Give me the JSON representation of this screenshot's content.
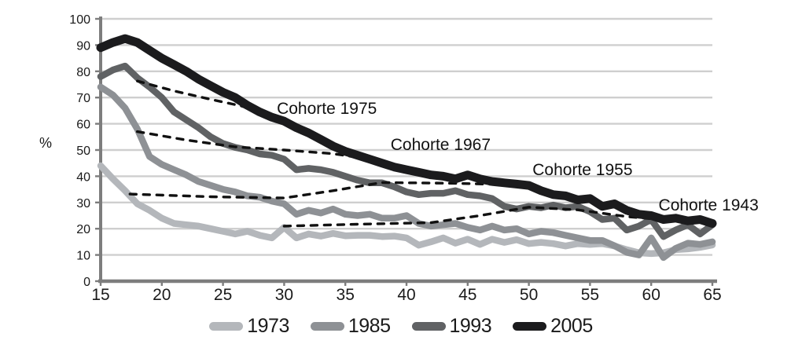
{
  "chart_data": {
    "type": "line",
    "title": "",
    "xlabel": "",
    "ylabel": "%",
    "xlim": [
      15,
      65
    ],
    "ylim": [
      0,
      100
    ],
    "xticks": [
      15,
      20,
      25,
      30,
      35,
      40,
      45,
      50,
      55,
      60,
      65
    ],
    "yticks": [
      0,
      10,
      20,
      30,
      40,
      50,
      60,
      70,
      80,
      90,
      100
    ],
    "grid": "horizontal",
    "legend_position": "bottom",
    "x": [
      15,
      16,
      17,
      18,
      19,
      20,
      21,
      22,
      23,
      24,
      25,
      26,
      27,
      28,
      29,
      30,
      31,
      32,
      33,
      34,
      35,
      36,
      37,
      38,
      39,
      40,
      41,
      42,
      43,
      44,
      45,
      46,
      47,
      48,
      49,
      50,
      51,
      52,
      53,
      54,
      55,
      56,
      57,
      58,
      59,
      60,
      61,
      62,
      63,
      64,
      65
    ],
    "series": [
      {
        "name": "1973",
        "color": "#b4b7bb",
        "values": [
          44,
          39,
          34.5,
          29.5,
          27,
          24,
          22,
          21.5,
          21,
          20,
          19,
          18,
          19,
          17.5,
          16.5,
          20.5,
          16.5,
          18,
          17.2,
          18.2,
          17.3,
          17.5,
          17.5,
          17,
          17.2,
          16.5,
          13.7,
          15,
          16.5,
          14.5,
          16,
          14,
          16,
          14.8,
          15.8,
          14.3,
          14.8,
          14.3,
          13.4,
          14.3,
          14,
          14.3,
          13.4,
          12,
          10.8,
          10.5,
          10.8,
          12,
          12.3,
          12.9,
          13.8
        ]
      },
      {
        "name": "1985",
        "color": "#8e9195",
        "values": [
          74,
          71,
          66,
          58,
          47.5,
          44.5,
          42.5,
          40.5,
          38,
          36.5,
          35,
          34,
          32.5,
          32,
          30.5,
          29.5,
          25.5,
          27,
          26,
          27.5,
          25.5,
          25,
          25.5,
          24,
          24,
          25,
          22,
          21,
          21.5,
          22,
          20.5,
          19.5,
          21,
          19.5,
          20,
          18,
          19,
          18.5,
          17.5,
          16.5,
          15.5,
          15.5,
          13.5,
          11,
          10,
          16.5,
          9,
          12.5,
          14.5,
          14,
          15
        ]
      },
      {
        "name": "1993",
        "color": "#606264",
        "values": [
          78,
          80.5,
          82,
          77.5,
          74,
          70,
          64.5,
          61.5,
          58.5,
          55,
          52.5,
          51,
          50,
          48.5,
          48,
          46.5,
          42.5,
          43,
          42.5,
          41.5,
          40,
          38.5,
          37.5,
          37.5,
          36,
          34,
          33,
          33.5,
          33.5,
          34.5,
          33,
          32.5,
          31.5,
          28.5,
          27.5,
          28.5,
          28,
          29,
          28,
          28.5,
          26.5,
          23.5,
          24,
          19.5,
          21,
          23.5,
          17,
          19.5,
          21.5,
          18,
          21.5
        ]
      },
      {
        "name": "2005",
        "color": "#1b1b1d",
        "values": [
          89,
          91,
          92.5,
          91,
          88,
          85,
          82.5,
          80,
          77,
          74.5,
          72,
          70,
          67,
          64.5,
          62.5,
          61,
          58.5,
          56.5,
          54,
          51.5,
          49.5,
          48,
          46.5,
          45,
          43.5,
          42.5,
          41.5,
          40.5,
          40,
          39,
          40.5,
          39,
          38,
          37.5,
          37,
          36.5,
          34.5,
          33,
          32.5,
          31,
          31.5,
          28.5,
          29.5,
          27,
          25.5,
          25,
          23.5,
          24,
          23,
          23.5,
          22
        ]
      }
    ],
    "cohort_lines": [
      {
        "label": "Cohorte 1975",
        "points": [
          [
            18,
            76.3
          ],
          [
            21,
            72.5
          ],
          [
            24,
            69.3
          ],
          [
            26.5,
            66.8
          ],
          [
            29,
            62.8
          ]
        ],
        "label_anchor": {
          "age": 29.4,
          "pct": 63.8
        }
      },
      {
        "label": "Cohorte 1967",
        "points": [
          [
            18,
            57
          ],
          [
            22,
            53.8
          ],
          [
            26,
            51.2
          ],
          [
            30,
            50
          ],
          [
            34,
            48.6
          ],
          [
            37.5,
            46.2
          ]
        ],
        "label_anchor": {
          "age": 38.7,
          "pct": 50
        }
      },
      {
        "label": "Cohorte 1955",
        "points": [
          [
            17.4,
            33.2
          ],
          [
            24,
            32.2
          ],
          [
            30,
            31.7
          ],
          [
            34,
            34.5
          ],
          [
            38,
            37.6
          ],
          [
            44,
            37.3
          ],
          [
            50,
            36.6
          ]
        ],
        "label_anchor": {
          "age": 50.3,
          "pct": 40.4
        }
      },
      {
        "label": "Cohorte 1943",
        "points": [
          [
            30,
            21
          ],
          [
            36,
            21.7
          ],
          [
            42,
            22.3
          ],
          [
            46,
            25
          ],
          [
            50,
            28.2
          ],
          [
            54,
            27.2
          ],
          [
            58,
            24.6
          ],
          [
            61,
            23.4
          ]
        ],
        "label_anchor": {
          "age": 60.6,
          "pct": 26.9
        }
      }
    ],
    "style": {
      "gridline_color": "#cfcfcf",
      "axis_color": "#7d7d7d",
      "tick_label_color": "#1a1a1a",
      "cohort_line_color": "#111111",
      "annotation_color": "#111111"
    }
  }
}
